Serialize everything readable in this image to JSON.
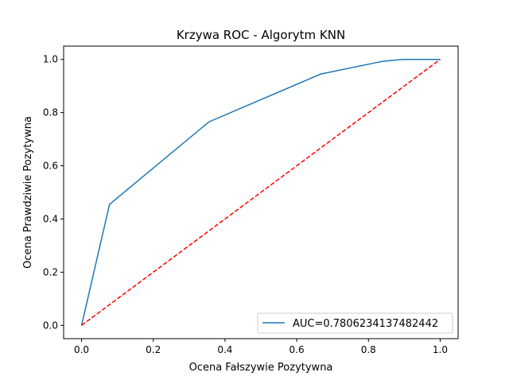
{
  "chart_data": {
    "type": "line",
    "title": "Krzywa ROC - Algorytm KNN",
    "xlabel": "Ocena Fałszywie Pozytywna",
    "ylabel": "Ocena Prawdziwie Pozytywna",
    "xlim": [
      -0.05,
      1.05
    ],
    "ylim": [
      -0.05,
      1.05
    ],
    "xticks": [
      "0.0",
      "0.2",
      "0.4",
      "0.6",
      "0.8",
      "1.0"
    ],
    "yticks": [
      "0.0",
      "0.2",
      "0.4",
      "0.6",
      "0.8",
      "1.0"
    ],
    "grid": false,
    "legend_position": "lower right",
    "series": [
      {
        "name": "AUC=0.7806234137482442",
        "color": "#1f77b4",
        "style": "solid",
        "x": [
          0.0,
          0.078,
          0.355,
          0.667,
          0.84,
          0.895,
          1.0
        ],
        "y": [
          0.0,
          0.455,
          0.765,
          0.945,
          0.993,
          1.0,
          1.0
        ]
      },
      {
        "color": "#ff0000",
        "style": "dashed",
        "x": [
          0.0,
          1.0
        ],
        "y": [
          0.0,
          1.0
        ]
      }
    ]
  }
}
